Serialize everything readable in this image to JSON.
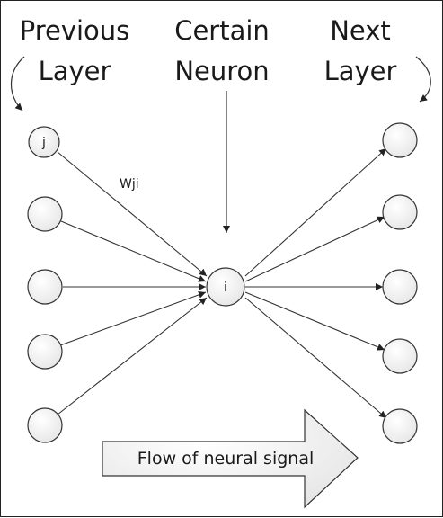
{
  "headers": {
    "previous": [
      "Previous",
      "Layer"
    ],
    "certain": [
      "Certain",
      "Neuron"
    ],
    "next": [
      "Next",
      "Layer"
    ]
  },
  "nodes": {
    "j_label": "j",
    "i_label": "i"
  },
  "weight_label": "Wji",
  "flow_label": "Flow of neural signal",
  "colors": {
    "stroke": "#333333",
    "node_fill": "#f2f2f2"
  }
}
